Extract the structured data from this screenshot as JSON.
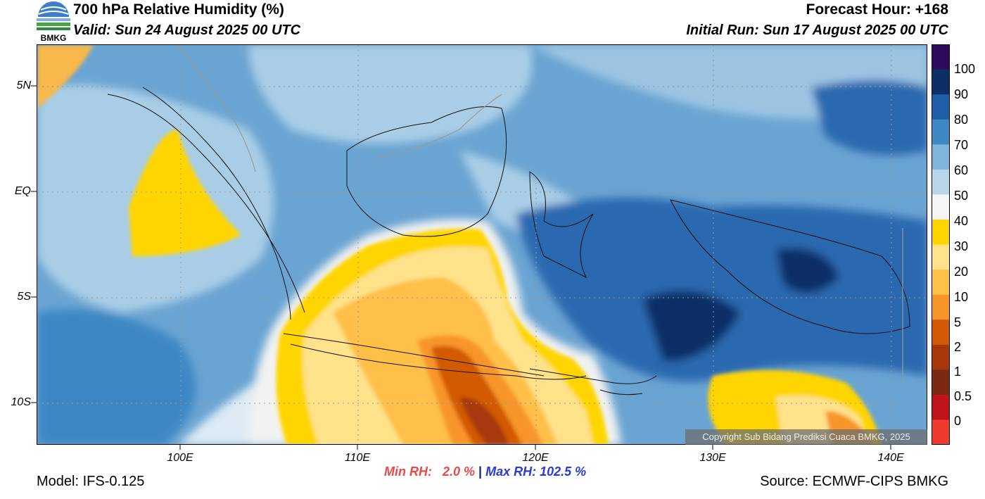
{
  "header": {
    "title": "700 hPa Relative Humidity (%)",
    "valid": "Valid: Sun 24 August 2025 00 UTC",
    "forecast_hour": "Forecast Hour: +168",
    "initial_run": "Initial Run: Sun 17 August 2025 00 UTC",
    "logo_text": "BMKG"
  },
  "axes": {
    "lat_labels": [
      "5N",
      "EQ",
      "5S",
      "10S"
    ],
    "lon_labels": [
      "100E",
      "110E",
      "120E",
      "130E",
      "140E"
    ]
  },
  "colorbar": {
    "labels": [
      "100",
      "90",
      "80",
      "70",
      "60",
      "50",
      "40",
      "30",
      "20",
      "10",
      "5",
      "2",
      "1",
      "0.5",
      "0"
    ],
    "colors": [
      "#2e0a5c",
      "#0c2f66",
      "#1f5fa8",
      "#3e88c4",
      "#7fb5da",
      "#b8d6ea",
      "#f5f5f5",
      "#ffd500",
      "#ffe28a",
      "#ffc04a",
      "#f7952a",
      "#d25a06",
      "#a8380a",
      "#7a2a10",
      "#c0141a",
      "#ee3b2e"
    ]
  },
  "stats": {
    "min_rh": "Min RH:   2.0 %",
    "separator": "|",
    "max_rh": "Max RH: 102.5 %"
  },
  "footer": {
    "model": "Model: IFS-0.125",
    "source": "Source: ECMWF-CIPS BMKG",
    "copyright": "Copyright Sub Bidang Prediksi Cuaca BMKG, 2025"
  }
}
